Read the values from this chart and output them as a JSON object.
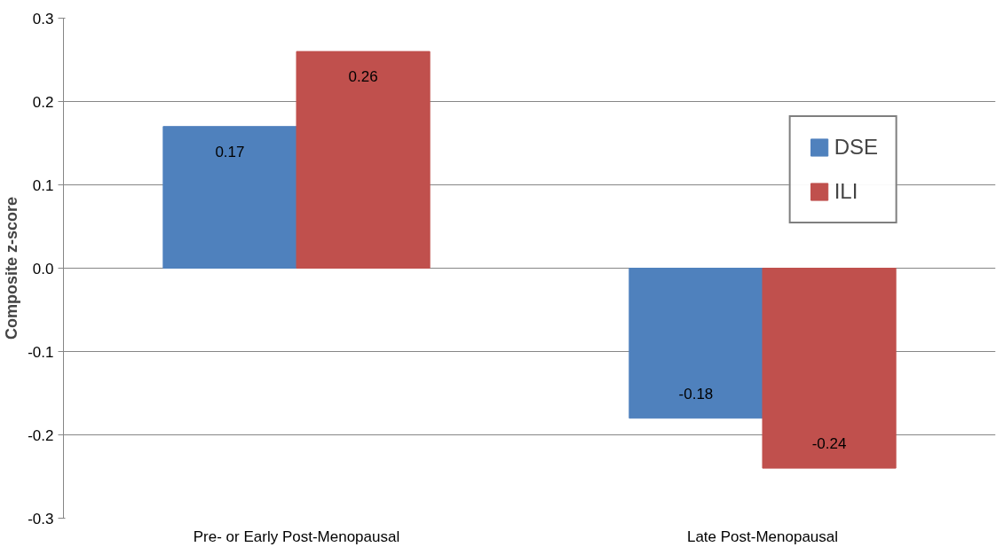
{
  "chart_data": {
    "type": "bar",
    "ylabel": "Composite z-score",
    "categories": [
      "Pre- or Early Post-Menopausal",
      "Late Post-Menopausal"
    ],
    "series": [
      {
        "name": "DSE",
        "color": "#4f81bd",
        "values": [
          0.17,
          -0.18
        ]
      },
      {
        "name": "ILI",
        "color": "#c0504d",
        "values": [
          0.26,
          -0.24
        ]
      }
    ],
    "ylim": [
      -0.3,
      0.3
    ],
    "yticks": [
      -0.3,
      -0.2,
      -0.1,
      {
        "value": 0,
        "label": "0.0"
      },
      0.1,
      0.2,
      0.3
    ],
    "grid": "y",
    "legend": "top right",
    "data_labels": true
  }
}
